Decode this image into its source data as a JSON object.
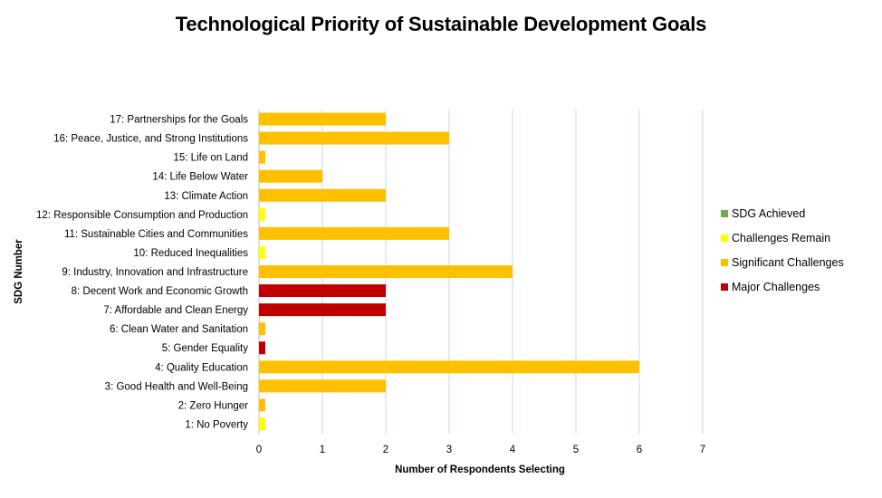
{
  "chart_data": {
    "type": "bar",
    "orientation": "horizontal",
    "title": "Technological Priority of Sustainable Development Goals",
    "xlabel": "Number of Respondents Selecting",
    "ylabel": "SDG Number",
    "xlim": [
      0,
      7
    ],
    "xticks": [
      "0",
      "1",
      "2",
      "3",
      "4",
      "5",
      "6",
      "7"
    ],
    "grid": "vertical",
    "legend_position": "right",
    "legend": [
      {
        "name": "SDG Achieved",
        "color": "#70ad47"
      },
      {
        "name": "Challenges Remain",
        "color": "#ffff00"
      },
      {
        "name": "Significant Challenges",
        "color": "#ffc000"
      },
      {
        "name": "Major Challenges",
        "color": "#c00000"
      }
    ],
    "bars": [
      {
        "label": "17: Partnerships for the Goals",
        "value": 2,
        "status": "Significant Challenges"
      },
      {
        "label": "16: Peace, Justice, and Strong Institutions",
        "value": 3,
        "status": "Significant Challenges"
      },
      {
        "label": "15: Life on Land",
        "value": 0.1,
        "status": "Significant Challenges"
      },
      {
        "label": "14: Life Below Water",
        "value": 1,
        "status": "Significant Challenges"
      },
      {
        "label": "13: Climate Action",
        "value": 2,
        "status": "Significant Challenges"
      },
      {
        "label": "12: Responsible Consumption and Production",
        "value": 0.1,
        "status": "Challenges Remain"
      },
      {
        "label": "11: Sustainable Cities and Communities",
        "value": 3,
        "status": "Significant Challenges"
      },
      {
        "label": "10: Reduced Inequalities",
        "value": 0.1,
        "status": "Challenges Remain"
      },
      {
        "label": "9: Industry, Innovation and Infrastructure",
        "value": 4,
        "status": "Significant Challenges"
      },
      {
        "label": "8: Decent Work and Economic Growth",
        "value": 2,
        "status": "Major Challenges"
      },
      {
        "label": "7: Affordable and Clean Energy",
        "value": 2,
        "status": "Major Challenges"
      },
      {
        "label": "6: Clean Water and Sanitation",
        "value": 0.1,
        "status": "Significant Challenges"
      },
      {
        "label": "5: Gender Equality",
        "value": 0.1,
        "status": "Major Challenges"
      },
      {
        "label": "4: Quality Education",
        "value": 6,
        "status": "Significant Challenges"
      },
      {
        "label": "3: Good Health and Well-Being",
        "value": 2,
        "status": "Significant Challenges"
      },
      {
        "label": "2: Zero Hunger",
        "value": 0.1,
        "status": "Significant Challenges"
      },
      {
        "label": "1: No Poverty",
        "value": 0.1,
        "status": "Challenges Remain"
      }
    ]
  }
}
